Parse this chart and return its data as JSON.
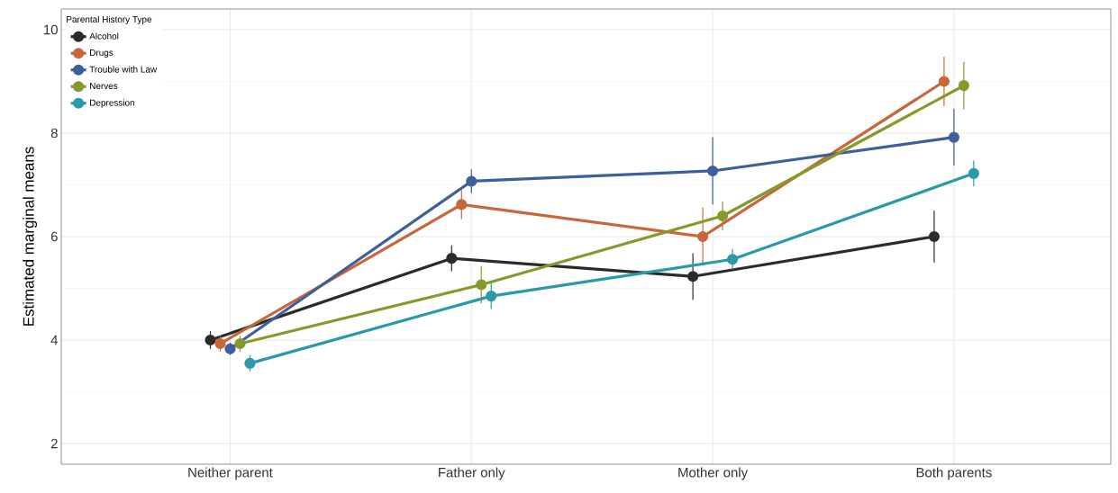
{
  "chart_data": {
    "type": "line",
    "ylabel": "Estimated marginal means",
    "legend_title": "Parental History Type",
    "categories": [
      "Neither parent",
      "Father only",
      "Mother only",
      "Both parents"
    ],
    "series": [
      {
        "name": "Alcohol",
        "color": "#2b2b2b",
        "values": [
          4.0,
          5.58,
          5.23,
          6.0
        ],
        "errors": [
          0.17,
          0.25,
          0.45,
          0.5
        ]
      },
      {
        "name": "Drugs",
        "color": "#c8673a",
        "values": [
          3.93,
          6.62,
          6.0,
          9.0
        ],
        "errors": [
          0.15,
          0.28,
          0.56,
          0.48
        ]
      },
      {
        "name": "Trouble with Law",
        "color": "#3f5f9a",
        "values": [
          3.83,
          7.07,
          7.27,
          7.92
        ],
        "errors": [
          0.12,
          0.23,
          0.65,
          0.55
        ]
      },
      {
        "name": "Nerves",
        "color": "#86992a",
        "values": [
          3.93,
          5.07,
          6.4,
          8.92
        ],
        "errors": [
          0.15,
          0.36,
          0.28,
          0.46
        ]
      },
      {
        "name": "Depression",
        "color": "#2a9aa8",
        "values": [
          3.55,
          4.85,
          5.56,
          7.22
        ],
        "errors": [
          0.15,
          0.25,
          0.2,
          0.25
        ]
      }
    ],
    "ylim": [
      1.6,
      10.4
    ],
    "yticks": [
      2,
      4,
      6,
      8,
      10
    ],
    "grid": true,
    "legend": "top left",
    "marker": "circle",
    "line_style": "solid"
  }
}
